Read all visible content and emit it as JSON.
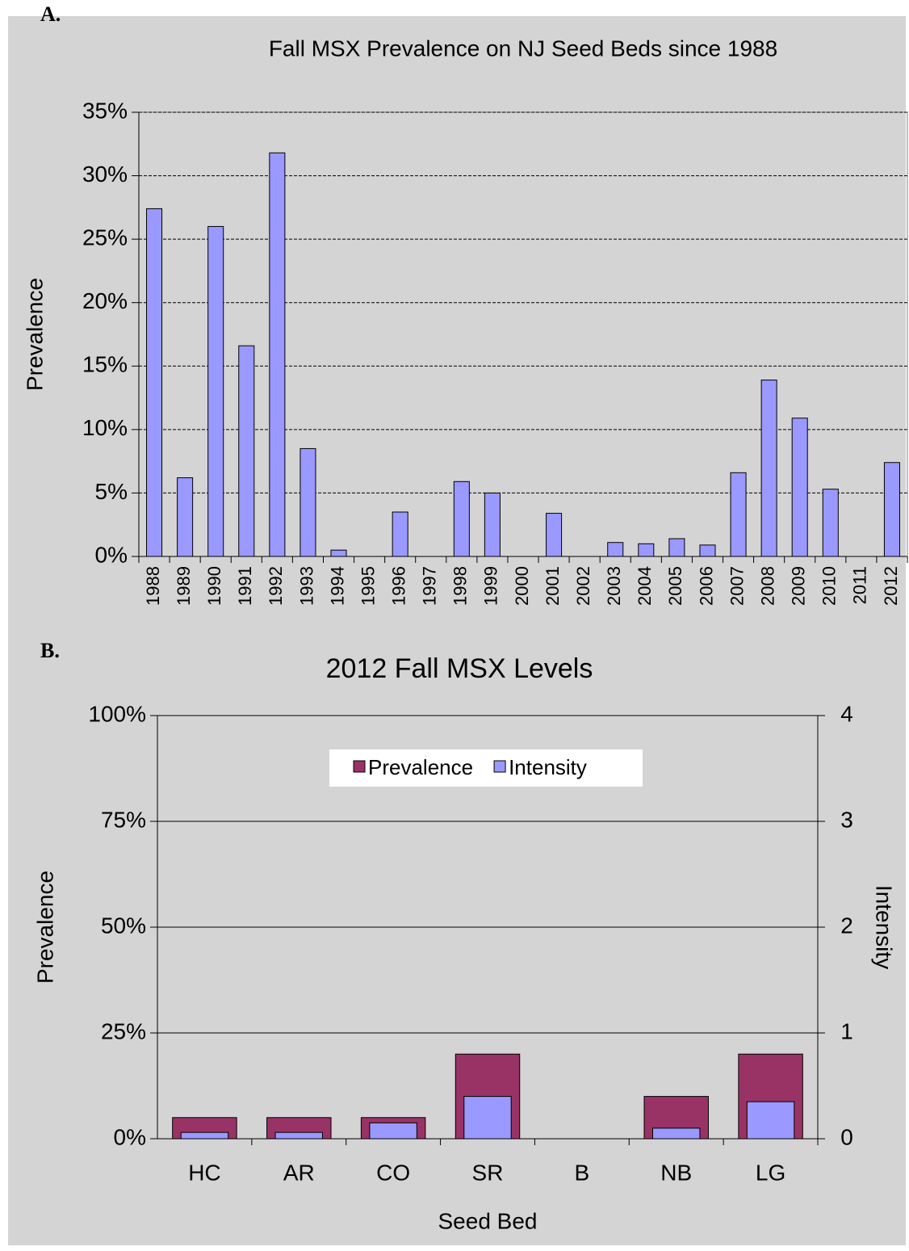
{
  "panel_labels": [
    "A.",
    "B."
  ],
  "chart_data": [
    {
      "type": "bar",
      "title": "Fall MSX Prevalence on NJ Seed Beds since 1988",
      "ylabel": "Prevalence",
      "categories": [
        "1988",
        "1989",
        "1990",
        "1991",
        "1992",
        "1993",
        "1994",
        "1995",
        "1996",
        "1997",
        "1998",
        "1999",
        "2000",
        "2001",
        "2002",
        "2003",
        "2004",
        "2005",
        "2006",
        "2007",
        "2008",
        "2009",
        "2010",
        "2011",
        "2012"
      ],
      "values": [
        27.4,
        6.2,
        26.0,
        16.6,
        31.8,
        8.5,
        0.5,
        0,
        3.5,
        0,
        5.9,
        5.0,
        0,
        3.4,
        0,
        1.1,
        1.0,
        1.4,
        0.9,
        6.6,
        13.9,
        10.9,
        5.3,
        0,
        7.4
      ],
      "color": "#9999ff",
      "ylim": [
        0,
        35
      ],
      "yticks": [
        {
          "value": 0,
          "label": "0%"
        },
        {
          "value": 5,
          "label": "5%"
        },
        {
          "value": 10,
          "label": "10%"
        },
        {
          "value": 15,
          "label": "15%"
        },
        {
          "value": 20,
          "label": "20%"
        },
        {
          "value": 25,
          "label": "25%"
        },
        {
          "value": 30,
          "label": "30%"
        },
        {
          "value": 35,
          "label": "35%"
        }
      ],
      "grid": true,
      "grid_style": "dashed"
    },
    {
      "type": "overlap_bar",
      "title": "2012 Fall MSX Levels",
      "xlabel": "Seed Bed",
      "ylabel": "Prevalence",
      "y2label": "Intensity",
      "categories": [
        "HC",
        "AR",
        "CO",
        "SR",
        "B",
        "NB",
        "LG"
      ],
      "series": [
        {
          "name": "Prevalence",
          "color": "#993366",
          "values": [
            5,
            5,
            5,
            20,
            0,
            10,
            20
          ]
        },
        {
          "name": "Intensity",
          "color": "#9999ff",
          "axis": "y2",
          "values": [
            0.06,
            0.06,
            0.15,
            0.4,
            0,
            0.1,
            0.35
          ]
        }
      ],
      "ylim": [
        0,
        100
      ],
      "yticks": [
        {
          "value": 0,
          "label": "0%"
        },
        {
          "value": 25,
          "label": "25%"
        },
        {
          "value": 50,
          "label": "50%"
        },
        {
          "value": 75,
          "label": "75%"
        },
        {
          "value": 100,
          "label": "100%"
        }
      ],
      "y2lim": [
        0,
        4
      ],
      "y2ticks": [
        0,
        1,
        2,
        3,
        4
      ],
      "grid": true,
      "grid_style": "solid",
      "legend": "top"
    }
  ]
}
